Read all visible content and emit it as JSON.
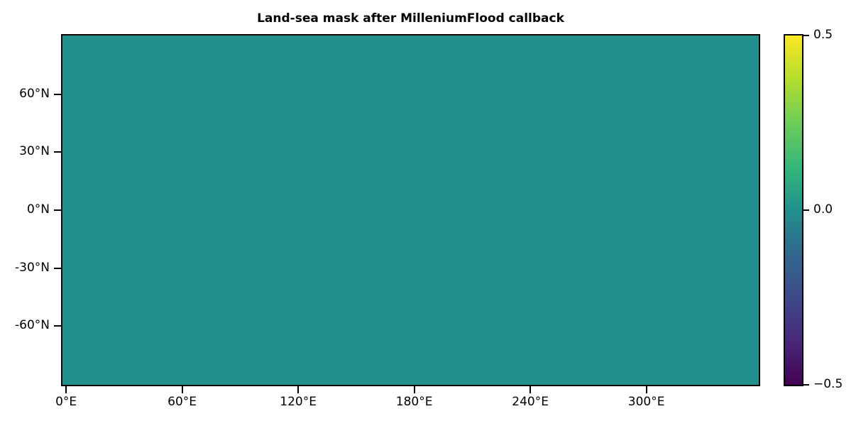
{
  "figure": {
    "background": "#ffffff",
    "text_color": "#000000"
  },
  "chart_data": {
    "type": "heatmap",
    "title": "Land-sea mask after MilleniumFlood callback",
    "xlabel": "",
    "ylabel": "",
    "grid": false,
    "xlim": [
      -1.875,
      358.125
    ],
    "ylim": [
      -90.4,
      90.4
    ],
    "x_tick_values": [
      0,
      60,
      120,
      180,
      240,
      300
    ],
    "x_tick_labels": [
      "0°E",
      "60°E",
      "120°E",
      "180°E",
      "240°E",
      "300°E"
    ],
    "y_tick_values": [
      60,
      30,
      0,
      -30,
      -60
    ],
    "y_tick_labels": [
      "60°N",
      "30°N",
      "0°N",
      "-30°N",
      "-60°N"
    ],
    "field": {
      "uniform_value": 0.0,
      "color": "#21908d",
      "description": "entire longitude-latitude grid is a single uniform value of 0.0 (solid teal, viridis midpoint)"
    },
    "colorbar": {
      "colormap": "viridis",
      "clim": [
        -0.5,
        0.5
      ],
      "position": "right",
      "tick_values": [
        0.5,
        0.0,
        -0.5
      ],
      "tick_labels": [
        "0.5",
        "0.0",
        "−0.5"
      ],
      "gradient_stops_bottom_to_top": [
        "#440154",
        "#482878",
        "#3e4a89",
        "#31688e",
        "#21908d",
        "#35b779",
        "#6dcd59",
        "#b4de2c",
        "#fde725"
      ]
    }
  }
}
